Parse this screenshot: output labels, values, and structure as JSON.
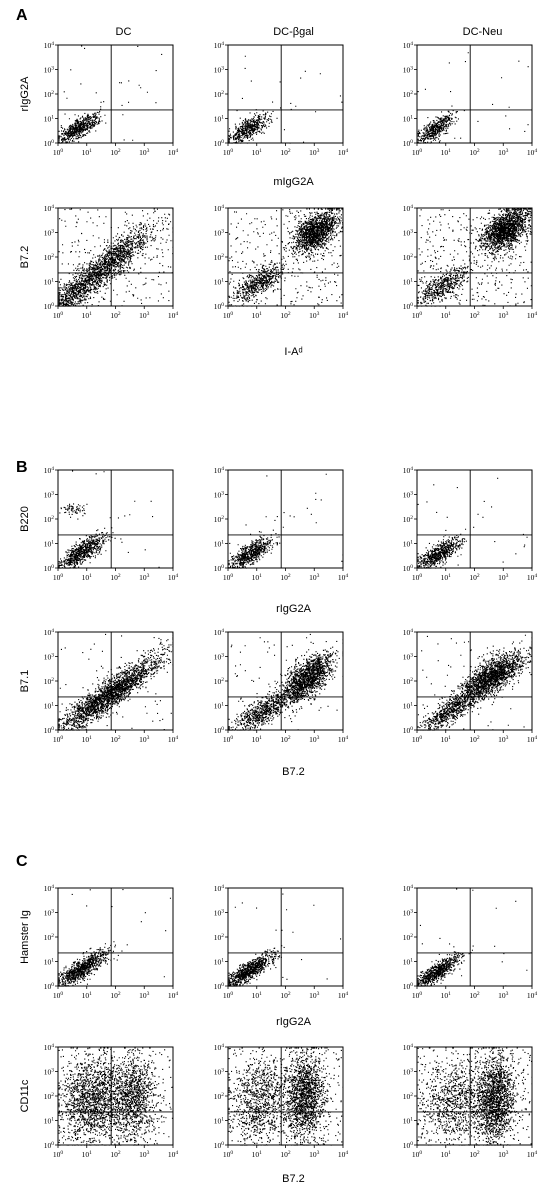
{
  "figure": {
    "column_headers": [
      "DC",
      "DC-βgal",
      "DC-Neu"
    ],
    "tick_labels": {
      "base": "10",
      "exponents": [
        "0",
        "1",
        "2",
        "3",
        "4"
      ]
    },
    "dot_color": "#000000",
    "panels": [
      {
        "letter": "A",
        "show_column_headers": true,
        "rows": [
          {
            "ylabel": "rIgG2A",
            "xlabel": "mIgG2A",
            "plots": [
              {
                "column": "DC",
                "clusters": [
                  {
                    "mx": 0.7,
                    "my": 0.6,
                    "sx": 0.35,
                    "sy": 0.3,
                    "rho": 0.75,
                    "n": 600
                  }
                ],
                "noise": 25
              },
              {
                "column": "DC-βgal",
                "clusters": [
                  {
                    "mx": 0.7,
                    "my": 0.6,
                    "sx": 0.35,
                    "sy": 0.3,
                    "rho": 0.75,
                    "n": 520
                  }
                ],
                "noise": 20
              },
              {
                "column": "DC-Neu",
                "clusters": [
                  {
                    "mx": 0.65,
                    "my": 0.6,
                    "sx": 0.33,
                    "sy": 0.3,
                    "rho": 0.75,
                    "n": 500
                  }
                ],
                "noise": 20
              }
            ]
          },
          {
            "ylabel": "B7.2",
            "xlabel": "I-Aᵈ",
            "plots": [
              {
                "column": "DC",
                "clusters": [
                  {
                    "mx": 1.7,
                    "my": 1.7,
                    "sx": 0.75,
                    "sy": 0.75,
                    "rho": 0.88,
                    "n": 1500
                  },
                  {
                    "mx": 0.5,
                    "my": 0.5,
                    "sx": 0.35,
                    "sy": 0.35,
                    "rho": 0.6,
                    "n": 350
                  }
                ],
                "noise": 250
              },
              {
                "column": "DC-βgal",
                "clusters": [
                  {
                    "mx": 3.05,
                    "my": 3.05,
                    "sx": 0.38,
                    "sy": 0.42,
                    "rho": 0.5,
                    "n": 1400
                  },
                  {
                    "mx": 1.05,
                    "my": 0.95,
                    "sx": 0.45,
                    "sy": 0.38,
                    "rho": 0.7,
                    "n": 550
                  }
                ],
                "noise": 300
              },
              {
                "column": "DC-Neu",
                "clusters": [
                  {
                    "mx": 3.05,
                    "my": 3.1,
                    "sx": 0.4,
                    "sy": 0.42,
                    "rho": 0.5,
                    "n": 1600
                  },
                  {
                    "mx": 0.9,
                    "my": 0.85,
                    "sx": 0.45,
                    "sy": 0.4,
                    "rho": 0.7,
                    "n": 500
                  }
                ],
                "noise": 350
              }
            ]
          }
        ]
      },
      {
        "letter": "B",
        "show_column_headers": false,
        "rows": [
          {
            "ylabel": "B220",
            "xlabel": "rIgG2A",
            "plots": [
              {
                "column": "DC",
                "clusters": [
                  {
                    "mx": 0.8,
                    "my": 0.65,
                    "sx": 0.4,
                    "sy": 0.35,
                    "rho": 0.78,
                    "n": 750
                  },
                  {
                    "mx": 0.55,
                    "my": 2.4,
                    "sx": 0.25,
                    "sy": 0.12,
                    "rho": 0,
                    "n": 60
                  }
                ],
                "noise": 25
              },
              {
                "column": "DC-βgal",
                "clusters": [
                  {
                    "mx": 0.75,
                    "my": 0.6,
                    "sx": 0.38,
                    "sy": 0.33,
                    "rho": 0.78,
                    "n": 650
                  }
                ],
                "noise": 25
              },
              {
                "column": "DC-Neu",
                "clusters": [
                  {
                    "mx": 0.75,
                    "my": 0.6,
                    "sx": 0.38,
                    "sy": 0.33,
                    "rho": 0.78,
                    "n": 650
                  }
                ],
                "noise": 25
              }
            ]
          },
          {
            "ylabel": "B7.1",
            "xlabel": "B7.2",
            "plots": [
              {
                "column": "DC",
                "clusters": [
                  {
                    "mx": 1.8,
                    "my": 1.5,
                    "sx": 0.9,
                    "sy": 0.8,
                    "rho": 0.92,
                    "n": 2200
                  }
                ],
                "noise": 60
              },
              {
                "column": "DC-βgal",
                "clusters": [
                  {
                    "mx": 2.75,
                    "my": 2.15,
                    "sx": 0.45,
                    "sy": 0.5,
                    "rho": 0.65,
                    "n": 1500
                  },
                  {
                    "mx": 1.2,
                    "my": 0.75,
                    "sx": 0.55,
                    "sy": 0.45,
                    "rho": 0.8,
                    "n": 700
                  }
                ],
                "noise": 60
              },
              {
                "column": "DC-Neu",
                "clusters": [
                  {
                    "mx": 2.6,
                    "my": 2.2,
                    "sx": 0.55,
                    "sy": 0.5,
                    "rho": 0.72,
                    "n": 1700
                  },
                  {
                    "mx": 1.1,
                    "my": 0.8,
                    "sx": 0.5,
                    "sy": 0.45,
                    "rho": 0.8,
                    "n": 650
                  }
                ],
                "noise": 60
              }
            ]
          }
        ]
      },
      {
        "letter": "C",
        "show_column_headers": false,
        "rows": [
          {
            "ylabel": "Hamster Ig",
            "xlabel": "rIgG2A",
            "plots": [
              {
                "column": "DC",
                "clusters": [
                  {
                    "mx": 0.8,
                    "my": 0.7,
                    "sx": 0.45,
                    "sy": 0.38,
                    "rho": 0.85,
                    "n": 900
                  }
                ],
                "noise": 15
              },
              {
                "column": "DC-βgal",
                "clusters": [
                  {
                    "mx": 0.75,
                    "my": 0.65,
                    "sx": 0.42,
                    "sy": 0.36,
                    "rho": 0.85,
                    "n": 850
                  }
                ],
                "noise": 15
              },
              {
                "column": "DC-Neu",
                "clusters": [
                  {
                    "mx": 0.7,
                    "my": 0.6,
                    "sx": 0.4,
                    "sy": 0.35,
                    "rho": 0.85,
                    "n": 750
                  }
                ],
                "noise": 15
              }
            ]
          },
          {
            "ylabel": "CD11c",
            "xlabel": "B7.2",
            "plots": [
              {
                "column": "DC",
                "clusters": [
                  {
                    "mx": 1.2,
                    "my": 1.9,
                    "sx": 0.55,
                    "sy": 0.85,
                    "rho": 0.1,
                    "n": 1500
                  },
                  {
                    "mx": 2.6,
                    "my": 1.9,
                    "sx": 0.4,
                    "sy": 0.85,
                    "rho": 0.1,
                    "n": 1100
                  }
                ],
                "noise": 250
              },
              {
                "column": "DC-βgal",
                "clusters": [
                  {
                    "mx": 1.1,
                    "my": 1.8,
                    "sx": 0.5,
                    "sy": 0.85,
                    "rho": 0.1,
                    "n": 900
                  },
                  {
                    "mx": 2.65,
                    "my": 2.0,
                    "sx": 0.35,
                    "sy": 0.85,
                    "rho": 0.1,
                    "n": 1500
                  }
                ],
                "noise": 300
              },
              {
                "column": "DC-Neu",
                "clusters": [
                  {
                    "mx": 1.3,
                    "my": 1.8,
                    "sx": 0.55,
                    "sy": 0.85,
                    "rho": 0.1,
                    "n": 800
                  },
                  {
                    "mx": 2.7,
                    "my": 1.9,
                    "sx": 0.35,
                    "sy": 0.85,
                    "rho": 0.1,
                    "n": 1600
                  }
                ],
                "noise": 300
              }
            ]
          }
        ]
      }
    ]
  }
}
